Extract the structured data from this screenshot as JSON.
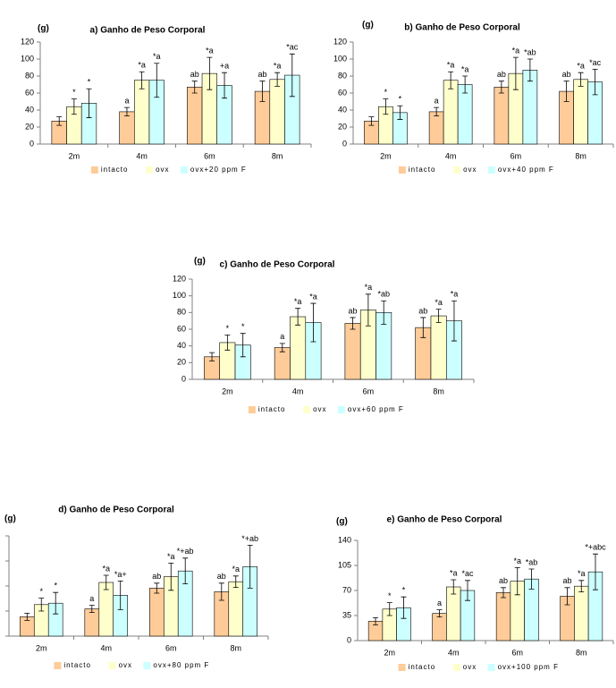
{
  "chart_data": [
    {
      "type": "bar",
      "title": "a) Ganho de Peso Corporal",
      "ylabel": "(g)",
      "categories": [
        "2m",
        "4m",
        "6m",
        "8m"
      ],
      "ylim": [
        0,
        120
      ],
      "yticks": [
        0,
        20,
        40,
        60,
        80,
        100,
        120
      ],
      "ytick_labels": true,
      "series": [
        {
          "name": "intacto",
          "color": "#FFCC99",
          "values": [
            27,
            38,
            67,
            62
          ],
          "errors": [
            5,
            5,
            7,
            12
          ],
          "labels": [
            null,
            "a",
            "ab",
            "ab"
          ]
        },
        {
          "name": "ovx",
          "color": "#FFFFCC",
          "values": [
            44,
            75,
            83,
            76
          ],
          "errors": [
            9,
            10,
            19,
            8
          ],
          "labels": [
            "*",
            "*a",
            "*a",
            "*a"
          ]
        },
        {
          "name": "ovx+20 ppm F",
          "color": "#CCFFFF",
          "values": [
            48,
            75,
            69,
            81
          ],
          "errors": [
            17,
            20,
            15,
            25
          ],
          "labels": [
            "*",
            "*a",
            "+a",
            "*ac"
          ]
        }
      ]
    },
    {
      "type": "bar",
      "title": "b) Ganho de Peso Corporal",
      "ylabel": "(g)",
      "categories": [
        "2m",
        "4m",
        "6m",
        "8m"
      ],
      "ylim": [
        0,
        120
      ],
      "yticks": [
        0,
        20,
        40,
        60,
        80,
        100,
        120
      ],
      "ytick_labels": true,
      "series": [
        {
          "name": "intacto",
          "color": "#FFCC99",
          "values": [
            27,
            38,
            67,
            62
          ],
          "errors": [
            5,
            5,
            7,
            12
          ],
          "labels": [
            null,
            "a",
            "ab",
            "ab"
          ]
        },
        {
          "name": "ovx",
          "color": "#FFFFCC",
          "values": [
            44,
            75,
            83,
            76
          ],
          "errors": [
            9,
            10,
            19,
            8
          ],
          "labels": [
            "*",
            "*a",
            "*a",
            "*a"
          ]
        },
        {
          "name": "ovx+40 ppm F",
          "color": "#CCFFFF",
          "values": [
            37,
            70,
            87,
            73
          ],
          "errors": [
            8,
            10,
            13,
            15
          ],
          "labels": [
            "*",
            "*a",
            "*ab",
            "*ac"
          ]
        }
      ]
    },
    {
      "type": "bar",
      "title": "c) Ganho de Peso Corporal",
      "ylabel": "(g)",
      "categories": [
        "2m",
        "4m",
        "6m",
        "8m"
      ],
      "ylim": [
        0,
        120
      ],
      "yticks": [
        0,
        20,
        40,
        60,
        80,
        100,
        120
      ],
      "ytick_labels": true,
      "series": [
        {
          "name": "intacto",
          "color": "#FFCC99",
          "values": [
            27,
            38,
            67,
            62
          ],
          "errors": [
            5,
            5,
            7,
            12
          ],
          "labels": [
            null,
            "a",
            "ab",
            "ab"
          ]
        },
        {
          "name": "ovx",
          "color": "#FFFFCC",
          "values": [
            44,
            75,
            83,
            76
          ],
          "errors": [
            9,
            10,
            19,
            8
          ],
          "labels": [
            "*",
            "*a",
            "*a",
            "*a"
          ]
        },
        {
          "name": "ovx+60 ppm F",
          "color": "#CCFFFF",
          "values": [
            41,
            68,
            80,
            70
          ],
          "errors": [
            14,
            23,
            14,
            24
          ],
          "labels": [
            "*",
            "*a",
            "*ab",
            "*a"
          ]
        }
      ]
    },
    {
      "type": "bar",
      "title": "d) Ganho de Peso Corporal",
      "ylabel": "(g)",
      "categories": [
        "2m",
        "4m",
        "6m",
        "8m"
      ],
      "ylim": [
        0,
        140
      ],
      "yticks": [
        0,
        35,
        70,
        105,
        140
      ],
      "ytick_labels": false,
      "series": [
        {
          "name": "intacto",
          "color": "#FFCC99",
          "values": [
            27,
            38,
            67,
            62
          ],
          "errors": [
            5,
            5,
            7,
            12
          ],
          "labels": [
            null,
            "a",
            "ab",
            "ab"
          ]
        },
        {
          "name": "ovx",
          "color": "#FFFFCC",
          "values": [
            44,
            75,
            83,
            76
          ],
          "errors": [
            9,
            10,
            19,
            8
          ],
          "labels": [
            "*",
            "*a",
            "*a",
            "*a"
          ]
        },
        {
          "name": "ovx+80 ppm F",
          "color": "#CCFFFF",
          "values": [
            46,
            57,
            91,
            97
          ],
          "errors": [
            15,
            20,
            18,
            30
          ],
          "labels": [
            "*",
            "*a+",
            "*+ab",
            "*+ab"
          ]
        }
      ]
    },
    {
      "type": "bar",
      "title": "e) Ganho de Peso Corporal",
      "ylabel": "(g)",
      "categories": [
        "2m",
        "4m",
        "6m",
        "8m"
      ],
      "ylim": [
        0,
        140
      ],
      "yticks": [
        0,
        35,
        70,
        105,
        140
      ],
      "ytick_labels": true,
      "series": [
        {
          "name": "intacto",
          "color": "#FFCC99",
          "values": [
            27,
            38,
            67,
            62
          ],
          "errors": [
            5,
            5,
            7,
            12
          ],
          "labels": [
            null,
            "a",
            "ab",
            "ab"
          ]
        },
        {
          "name": "ovx",
          "color": "#FFFFCC",
          "values": [
            44,
            75,
            83,
            76
          ],
          "errors": [
            9,
            10,
            19,
            8
          ],
          "labels": [
            "*",
            "*a",
            "*a",
            "*a"
          ]
        },
        {
          "name": "ovx+100 ppm F",
          "color": "#CCFFFF",
          "values": [
            46,
            70,
            86,
            96
          ],
          "errors": [
            15,
            14,
            14,
            25
          ],
          "labels": [
            "*",
            "*ac",
            "*ab",
            "*+abc"
          ]
        }
      ]
    }
  ]
}
